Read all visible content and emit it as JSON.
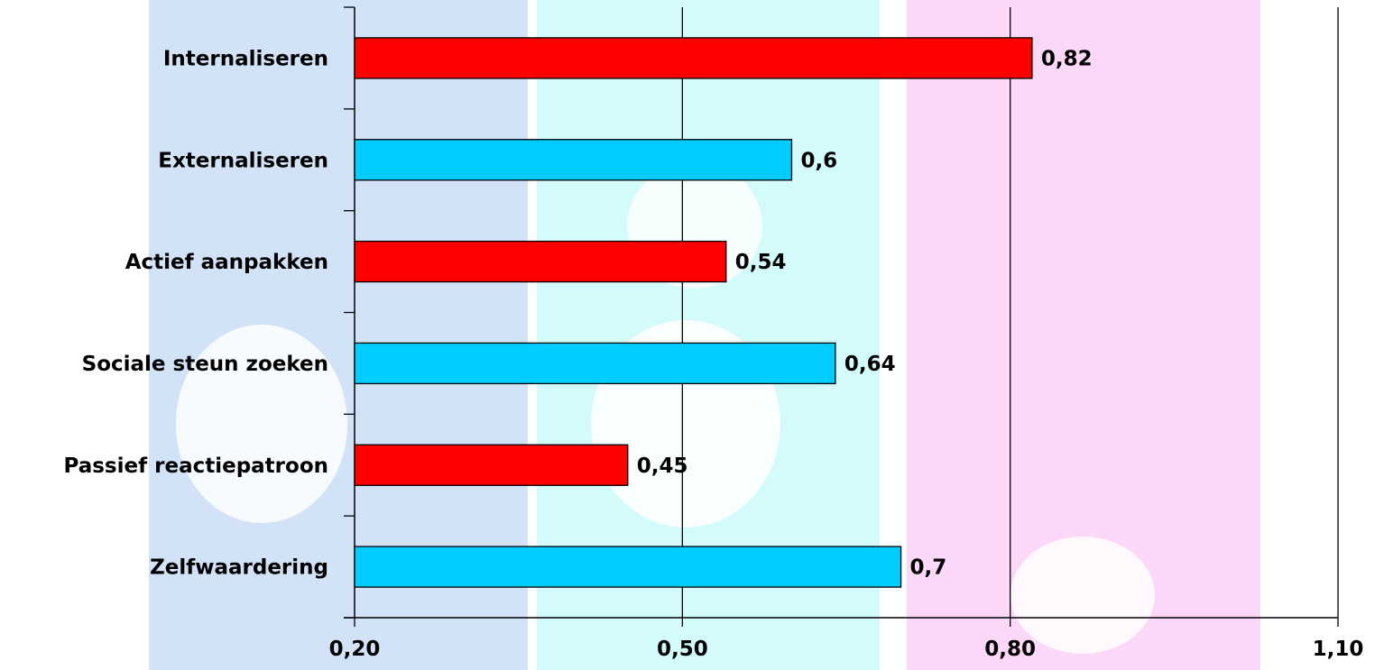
{
  "chart_data": {
    "type": "bar",
    "orientation": "horizontal",
    "categories": [
      "Internaliseren",
      "Externaliseren",
      "Actief aanpakken",
      "Sociale steun zoeken",
      "Passief reactiepatroon",
      "Zelfwaardering"
    ],
    "values": [
      0.82,
      0.6,
      0.54,
      0.64,
      0.45,
      0.7
    ],
    "value_labels": [
      "0,82",
      "0,6",
      "0,54",
      "0,64",
      "0,45",
      "0,7"
    ],
    "bar_colors": [
      "#ff0000",
      "#00ccff",
      "#ff0000",
      "#00ccff",
      "#ff0000",
      "#00ccff"
    ],
    "xlim": [
      0.2,
      1.1
    ],
    "x_ticks": [
      0.2,
      0.5,
      0.8,
      1.1
    ],
    "x_tick_labels": [
      "0,20",
      "0,50",
      "0,80",
      "1,10"
    ],
    "grid": true,
    "legend": "none",
    "title": "",
    "xlabel": "",
    "ylabel": ""
  },
  "colors": {
    "background_blue": "#d2e3f8",
    "background_cyan": "#d3fbfb",
    "background_pink": "#fbd8f7",
    "bar_red": "#ff0000",
    "bar_cyan": "#00ccff"
  }
}
